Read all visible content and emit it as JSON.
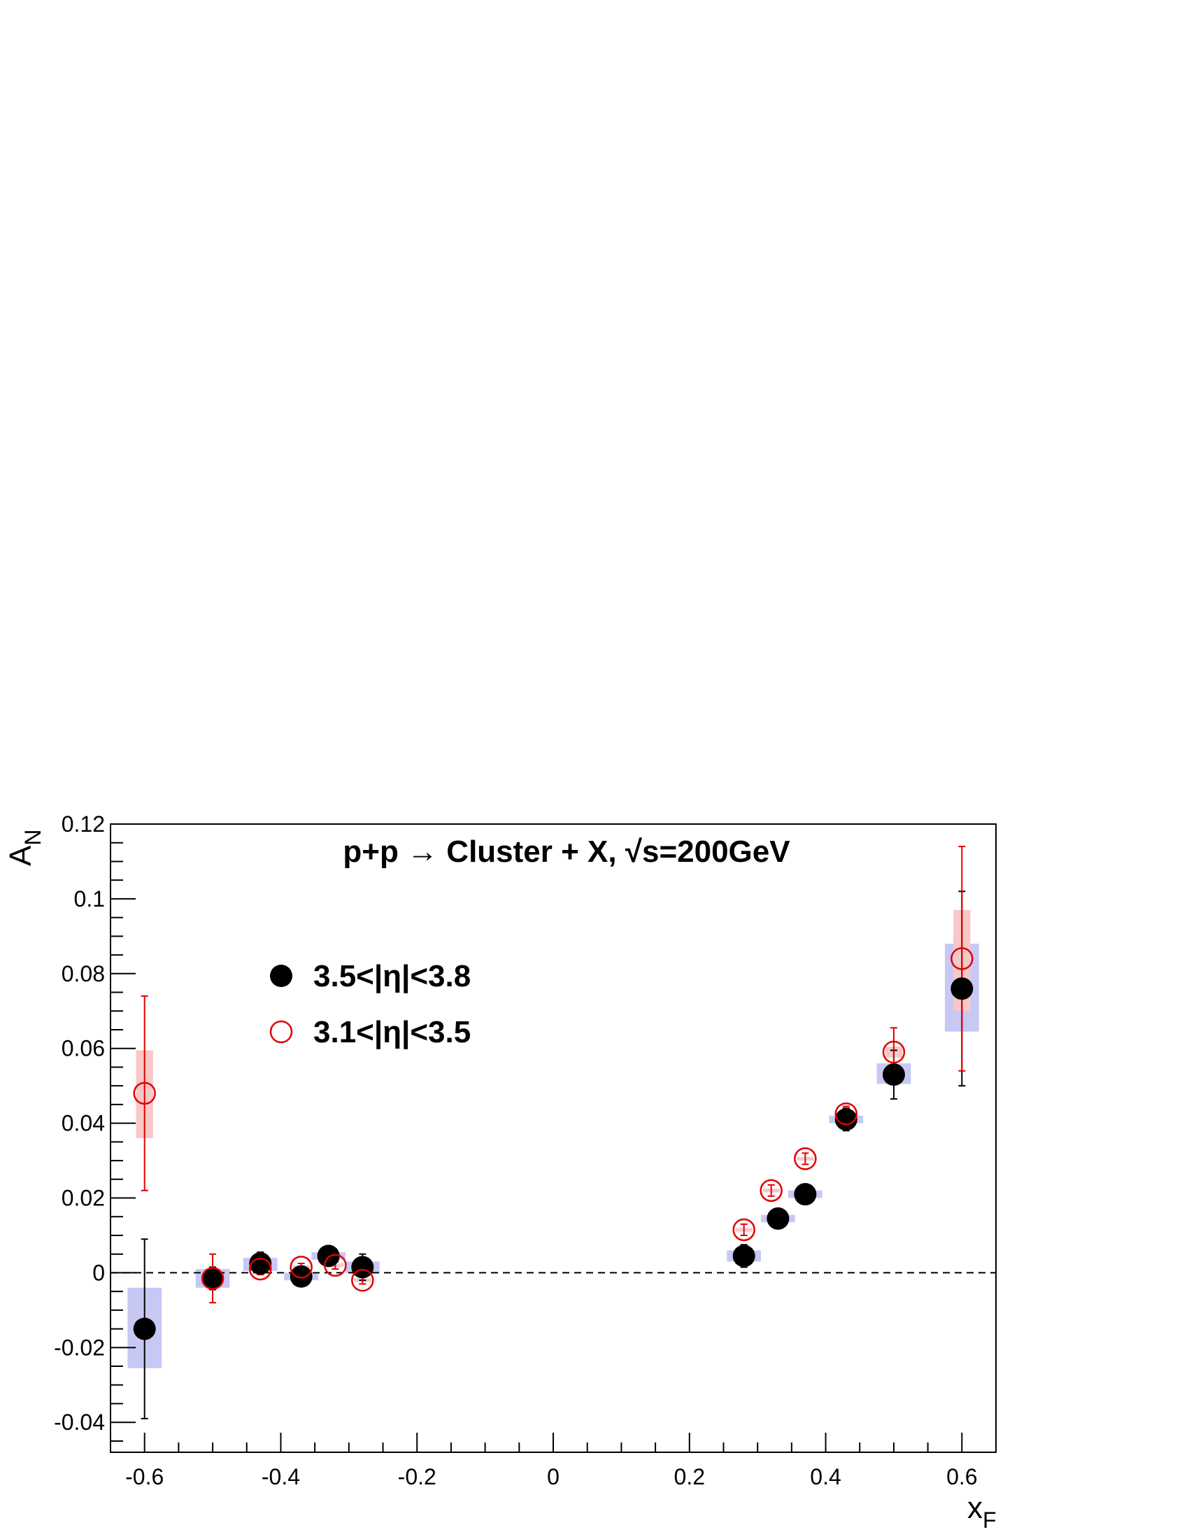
{
  "chart_data": {
    "type": "scatter",
    "title": "p+p → Cluster + X,  √s=200GeV",
    "xlabel": "x",
    "xlabel_sub": "F",
    "ylabel": "A",
    "ylabel_sub": "N",
    "xlim": [
      -0.65,
      0.65
    ],
    "ylim": [
      -0.048,
      0.12
    ],
    "x_ticks": [
      -0.6,
      -0.4,
      -0.2,
      0,
      0.2,
      0.4,
      0.6
    ],
    "x_tick_labels": [
      "-0.6",
      "-0.4",
      "-0.2",
      "0",
      "0.2",
      "0.4",
      "0.6"
    ],
    "y_ticks": [
      -0.04,
      -0.02,
      0,
      0.02,
      0.04,
      0.06,
      0.08,
      0.1,
      0.12
    ],
    "y_tick_labels": [
      "-0.04",
      "-0.02",
      "0",
      "0.02",
      "0.04",
      "0.06",
      "0.08",
      "0.1",
      "0.12"
    ],
    "zero_line": "dashed",
    "grid": false,
    "legend_position": "upper-left",
    "series": [
      {
        "name": "3.5<|η|<3.8",
        "marker": "filled-circle",
        "color": "#000000",
        "syst_color": "#c8c8f5",
        "points": [
          {
            "x": -0.6,
            "y": -0.015,
            "err": 0.024,
            "syst_lo": -0.0255,
            "syst_hi": -0.004,
            "syst_w": 0.05
          },
          {
            "x": -0.5,
            "y": -0.0015,
            "err": 0.003,
            "syst_lo": -0.004,
            "syst_hi": 0.001,
            "syst_w": 0.05
          },
          {
            "x": -0.43,
            "y": 0.0025,
            "err": 0.003,
            "syst_lo": 0.0005,
            "syst_hi": 0.004,
            "syst_w": 0.05
          },
          {
            "x": -0.37,
            "y": -0.001,
            "err": 0.0015,
            "syst_lo": -0.002,
            "syst_hi": 0.0,
            "syst_w": 0.05
          },
          {
            "x": -0.33,
            "y": 0.0045,
            "err": 0.0015,
            "syst_lo": 0.0035,
            "syst_hi": 0.0055,
            "syst_w": 0.05
          },
          {
            "x": -0.28,
            "y": 0.0015,
            "err": 0.0035,
            "syst_lo": 0.0,
            "syst_hi": 0.003,
            "syst_w": 0.05
          },
          {
            "x": 0.28,
            "y": 0.0045,
            "err": 0.003,
            "syst_lo": 0.003,
            "syst_hi": 0.006,
            "syst_w": 0.05
          },
          {
            "x": 0.33,
            "y": 0.0145,
            "err": 0.0015,
            "syst_lo": 0.0135,
            "syst_hi": 0.0155,
            "syst_w": 0.05
          },
          {
            "x": 0.37,
            "y": 0.021,
            "err": 0.0015,
            "syst_lo": 0.02,
            "syst_hi": 0.022,
            "syst_w": 0.05
          },
          {
            "x": 0.43,
            "y": 0.041,
            "err": 0.003,
            "syst_lo": 0.04,
            "syst_hi": 0.042,
            "syst_w": 0.05
          },
          {
            "x": 0.5,
            "y": 0.053,
            "err": 0.0065,
            "syst_lo": 0.0505,
            "syst_hi": 0.056,
            "syst_w": 0.05
          },
          {
            "x": 0.6,
            "y": 0.076,
            "err": 0.026,
            "syst_lo": 0.0645,
            "syst_hi": 0.088,
            "syst_w": 0.05
          }
        ]
      },
      {
        "name": "3.1<|η|<3.5",
        "marker": "open-circle",
        "color": "#e00000",
        "syst_color": "#f8c8c8",
        "points": [
          {
            "x": -0.6,
            "y": 0.048,
            "err": 0.026,
            "syst_lo": 0.036,
            "syst_hi": 0.0595,
            "syst_w": 0.025
          },
          {
            "x": -0.5,
            "y": -0.0015,
            "err": 0.0065,
            "syst_lo": -0.0025,
            "syst_hi": -0.0005,
            "syst_w": 0.025
          },
          {
            "x": -0.43,
            "y": 0.001,
            "err": 0.0015,
            "syst_lo": 0.0005,
            "syst_hi": 0.0015,
            "syst_w": 0.025
          },
          {
            "x": -0.37,
            "y": 0.0015,
            "err": 0.001,
            "syst_lo": 0.001,
            "syst_hi": 0.002,
            "syst_w": 0.025
          },
          {
            "x": -0.32,
            "y": 0.002,
            "err": 0.001,
            "syst_lo": 0.0015,
            "syst_hi": 0.0025,
            "syst_w": 0.025
          },
          {
            "x": -0.28,
            "y": -0.002,
            "err": 0.001,
            "syst_lo": -0.0025,
            "syst_hi": -0.0015,
            "syst_w": 0.025
          },
          {
            "x": 0.28,
            "y": 0.0115,
            "err": 0.0015,
            "syst_lo": 0.011,
            "syst_hi": 0.012,
            "syst_w": 0.025
          },
          {
            "x": 0.32,
            "y": 0.022,
            "err": 0.0015,
            "syst_lo": 0.0215,
            "syst_hi": 0.0225,
            "syst_w": 0.025
          },
          {
            "x": 0.37,
            "y": 0.0305,
            "err": 0.0015,
            "syst_lo": 0.03,
            "syst_hi": 0.031,
            "syst_w": 0.025
          },
          {
            "x": 0.43,
            "y": 0.0425,
            "err": 0.002,
            "syst_lo": 0.042,
            "syst_hi": 0.043,
            "syst_w": 0.025
          },
          {
            "x": 0.5,
            "y": 0.059,
            "err": 0.0065,
            "syst_lo": 0.0575,
            "syst_hi": 0.0605,
            "syst_w": 0.025
          },
          {
            "x": 0.6,
            "y": 0.084,
            "err": 0.03,
            "syst_lo": 0.07,
            "syst_hi": 0.097,
            "syst_w": 0.025
          }
        ]
      }
    ]
  }
}
